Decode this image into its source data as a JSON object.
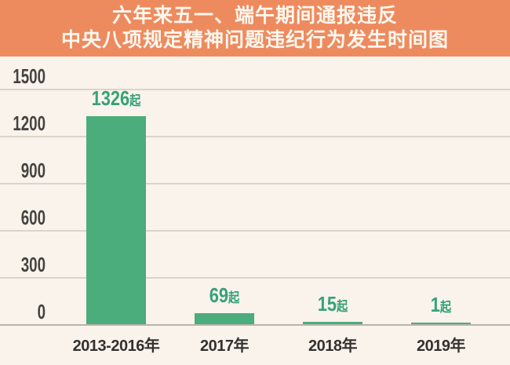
{
  "title": {
    "line1": "六年来五一、端午期间通报违反",
    "line2": "中央八项规定精神问题违纪行为发生时间图"
  },
  "chart_data": {
    "type": "bar",
    "title": "六年来五一、端午期间通报违反中央八项规定精神问题违纪行为发生时间图",
    "categories": [
      "2013-2016年",
      "2017年",
      "2018年",
      "2019年"
    ],
    "values": [
      1326,
      69,
      15,
      1
    ],
    "value_labels": [
      "1326",
      "69",
      "15",
      "1"
    ],
    "unit_suffix": "起",
    "ytick_labels": [
      "1500",
      "1200",
      "900",
      "600",
      "300",
      "0"
    ],
    "ylim": [
      0,
      1500
    ],
    "grid": true,
    "legend": "none",
    "colors": {
      "banner": "#ED8B5F",
      "title_text": "#FDF7EE",
      "background": "#F9F3EC",
      "bar": "#4BAC7C",
      "value_label": "#36A374",
      "gridline": "#D9D5C9",
      "baseline": "#B9B5AB",
      "ytick_text": "#45433F",
      "xlabel_text": "#33312E"
    }
  }
}
